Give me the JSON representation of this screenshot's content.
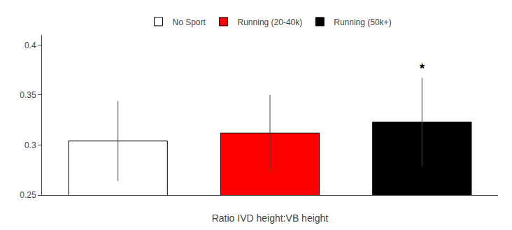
{
  "chart_data": {
    "type": "bar",
    "categories": [
      "No Sport",
      "Running (20-40k)",
      "Running (50k+)"
    ],
    "values": [
      0.304,
      0.312,
      0.323
    ],
    "errors": [
      0.04,
      0.038,
      0.044
    ],
    "colors": [
      "#ffffff",
      "#ff0000",
      "#000000"
    ],
    "xlabel": "Ratio IVD height:VB height",
    "ylim": [
      0.25,
      0.41
    ],
    "yticks": [
      0.25,
      0.3,
      0.35,
      0.4
    ],
    "tick_labels": "y",
    "grid": false,
    "legend": "top",
    "annotations": [
      {
        "text": "*",
        "category": "Running (50k+)"
      }
    ]
  }
}
